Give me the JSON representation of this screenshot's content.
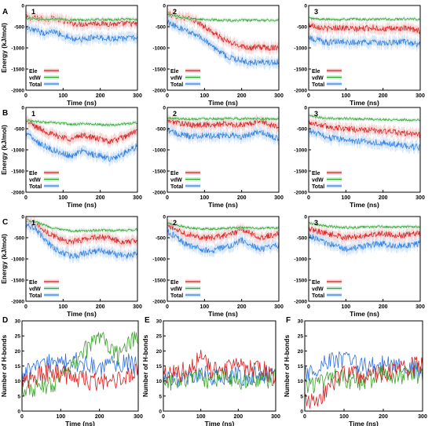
{
  "figure": {
    "row_labels": [
      "A",
      "B",
      "C",
      "D",
      "E",
      "F"
    ],
    "energy_ylabel": "Energy (kJ/mol)",
    "hbond_ylabel": "Number of H-bonds",
    "xlabel": "Time (ns)",
    "legend": [
      "Ele",
      "vdW",
      "Total"
    ]
  },
  "colors": {
    "ele": "#d42020",
    "ele_shade": "#f7c4c4",
    "vdw": "#3aa02a",
    "vdw_shade": "#c4ecd6",
    "total": "#2f7fe0",
    "total_shade": "#c6dcf7",
    "hb1": "#2f6fe0",
    "hb2": "#3aa02a",
    "hb3": "#d42020"
  },
  "chart_data": [
    {
      "type": "line",
      "panel": "A",
      "index_label": "1",
      "xlabel": "Time (ns)",
      "ylabel": "Energy (kJ/mol)",
      "xlim": [
        0,
        300
      ],
      "ylim": [
        -2000,
        0
      ],
      "xticks": [
        0,
        100,
        200,
        300
      ],
      "yticks": [
        0,
        -500,
        -1000,
        -1500,
        -2000
      ],
      "x": [
        0,
        25,
        50,
        75,
        100,
        125,
        150,
        175,
        200,
        225,
        250,
        275,
        300
      ],
      "series": [
        {
          "name": "Ele",
          "values": [
            -280,
            -300,
            -320,
            -300,
            -360,
            -420,
            -440,
            -410,
            -420,
            -430,
            -440,
            -420,
            -440
          ]
        },
        {
          "name": "vdW",
          "values": [
            -300,
            -310,
            -330,
            -320,
            -330,
            -340,
            -340,
            -340,
            -330,
            -340,
            -330,
            -320,
            -330
          ]
        },
        {
          "name": "Total",
          "values": [
            -560,
            -600,
            -650,
            -620,
            -700,
            -780,
            -800,
            -760,
            -770,
            -780,
            -790,
            -760,
            -780
          ]
        }
      ]
    },
    {
      "type": "line",
      "panel": "A",
      "index_label": "2",
      "xlabel": "Time (ns)",
      "ylabel": "Energy (kJ/mol)",
      "xlim": [
        0,
        300
      ],
      "ylim": [
        -2000,
        0
      ],
      "xticks": [
        0,
        100,
        200,
        300
      ],
      "yticks": [
        0,
        -500,
        -1000,
        -1500,
        -2000
      ],
      "x": [
        0,
        25,
        50,
        75,
        100,
        125,
        150,
        175,
        200,
        225,
        250,
        275,
        300
      ],
      "series": [
        {
          "name": "Ele",
          "values": [
            -200,
            -250,
            -300,
            -350,
            -500,
            -650,
            -800,
            -900,
            -950,
            -1000,
            -980,
            -1000,
            -980
          ]
        },
        {
          "name": "vdW",
          "values": [
            -200,
            -250,
            -300,
            -320,
            -330,
            -340,
            -350,
            -350,
            -350,
            -350,
            -350,
            -350,
            -350
          ]
        },
        {
          "name": "Total",
          "values": [
            -400,
            -500,
            -600,
            -670,
            -830,
            -990,
            -1150,
            -1250,
            -1300,
            -1350,
            -1330,
            -1350,
            -1330
          ]
        }
      ]
    },
    {
      "type": "line",
      "panel": "A",
      "index_label": "3",
      "xlabel": "Time (ns)",
      "ylabel": "Energy (kJ/mol)",
      "xlim": [
        0,
        300
      ],
      "ylim": [
        -2000,
        0
      ],
      "xticks": [
        0,
        100,
        200,
        300
      ],
      "yticks": [
        0,
        -500,
        -1000,
        -1500,
        -2000
      ],
      "x": [
        0,
        25,
        50,
        75,
        100,
        125,
        150,
        175,
        200,
        225,
        250,
        275,
        300
      ],
      "series": [
        {
          "name": "Ele",
          "values": [
            -450,
            -500,
            -550,
            -520,
            -530,
            -560,
            -540,
            -520,
            -560,
            -550,
            -540,
            -560,
            -600
          ]
        },
        {
          "name": "vdW",
          "values": [
            -300,
            -320,
            -330,
            -330,
            -330,
            -320,
            -330,
            -330,
            -320,
            -330,
            -320,
            -320,
            -330
          ]
        },
        {
          "name": "Total",
          "values": [
            -750,
            -820,
            -880,
            -850,
            -860,
            -880,
            -870,
            -850,
            -880,
            -880,
            -860,
            -880,
            -930
          ]
        }
      ]
    },
    {
      "type": "line",
      "panel": "B",
      "index_label": "1",
      "xlabel": "Time (ns)",
      "ylabel": "Energy (kJ/mol)",
      "xlim": [
        0,
        300
      ],
      "ylim": [
        -2000,
        0
      ],
      "xticks": [
        0,
        100,
        200,
        300
      ],
      "yticks": [
        0,
        -500,
        -1000,
        -1500,
        -2000
      ],
      "x": [
        0,
        25,
        50,
        75,
        100,
        125,
        150,
        175,
        200,
        225,
        250,
        275,
        300
      ],
      "series": [
        {
          "name": "Ele",
          "values": [
            -300,
            -450,
            -550,
            -650,
            -700,
            -750,
            -650,
            -700,
            -750,
            -800,
            -750,
            -650,
            -550
          ]
        },
        {
          "name": "vdW",
          "values": [
            -300,
            -330,
            -350,
            -360,
            -380,
            -400,
            -380,
            -390,
            -400,
            -410,
            -400,
            -380,
            -360
          ]
        },
        {
          "name": "Total",
          "values": [
            -600,
            -780,
            -900,
            -1010,
            -1080,
            -1150,
            -1030,
            -1090,
            -1150,
            -1210,
            -1150,
            -1030,
            -910
          ]
        }
      ]
    },
    {
      "type": "line",
      "panel": "B",
      "index_label": "2",
      "xlabel": "Time (ns)",
      "ylabel": "Energy (kJ/mol)",
      "xlim": [
        0,
        300
      ],
      "ylim": [
        -2000,
        0
      ],
      "xticks": [
        0,
        100,
        200,
        300
      ],
      "yticks": [
        0,
        -500,
        -1000,
        -1500,
        -2000
      ],
      "x": [
        0,
        25,
        50,
        75,
        100,
        125,
        150,
        175,
        200,
        225,
        250,
        275,
        300
      ],
      "series": [
        {
          "name": "Ele",
          "values": [
            -300,
            -350,
            -400,
            -420,
            -400,
            -420,
            -380,
            -400,
            -420,
            -380,
            -300,
            -400,
            -450
          ]
        },
        {
          "name": "vdW",
          "values": [
            -250,
            -260,
            -270,
            -270,
            -260,
            -260,
            -270,
            -260,
            -270,
            -260,
            -260,
            -270,
            -280
          ]
        },
        {
          "name": "Total",
          "values": [
            -550,
            -610,
            -670,
            -690,
            -660,
            -680,
            -650,
            -660,
            -690,
            -640,
            -560,
            -670,
            -730
          ]
        }
      ]
    },
    {
      "type": "line",
      "panel": "B",
      "index_label": "3",
      "xlabel": "Time (ns)",
      "ylabel": "Energy (kJ/mol)",
      "xlim": [
        0,
        300
      ],
      "ylim": [
        -2000,
        0
      ],
      "xticks": [
        0,
        100,
        200,
        300
      ],
      "yticks": [
        0,
        -500,
        -1000,
        -1500,
        -2000
      ],
      "x": [
        0,
        25,
        50,
        75,
        100,
        125,
        150,
        175,
        200,
        225,
        250,
        275,
        300
      ],
      "series": [
        {
          "name": "Ele",
          "values": [
            -350,
            -400,
            -450,
            -480,
            -500,
            -520,
            -530,
            -540,
            -560,
            -580,
            -600,
            -620,
            -650
          ]
        },
        {
          "name": "vdW",
          "values": [
            -200,
            -230,
            -250,
            -260,
            -260,
            -270,
            -270,
            -280,
            -280,
            -290,
            -290,
            -300,
            -300
          ]
        },
        {
          "name": "Total",
          "values": [
            -550,
            -630,
            -700,
            -740,
            -760,
            -790,
            -800,
            -820,
            -840,
            -870,
            -890,
            -920,
            -950
          ]
        }
      ]
    },
    {
      "type": "line",
      "panel": "C",
      "index_label": "1",
      "xlabel": "Time (ns)",
      "ylabel": "Energy (kJ/mol)",
      "xlim": [
        0,
        300
      ],
      "ylim": [
        -2000,
        0
      ],
      "xticks": [
        0,
        100,
        200,
        300
      ],
      "yticks": [
        0,
        -500,
        -1000,
        -1500,
        -2000
      ],
      "x": [
        0,
        25,
        50,
        75,
        100,
        125,
        150,
        175,
        200,
        225,
        250,
        275,
        300
      ],
      "series": [
        {
          "name": "Ele",
          "values": [
            -100,
            -150,
            -350,
            -450,
            -550,
            -600,
            -550,
            -500,
            -480,
            -520,
            -580,
            -600,
            -580
          ]
        },
        {
          "name": "vdW",
          "values": [
            -100,
            -120,
            -200,
            -280,
            -320,
            -340,
            -340,
            -330,
            -320,
            -330,
            -330,
            -320,
            -310
          ]
        },
        {
          "name": "Total",
          "values": [
            -200,
            -270,
            -550,
            -730,
            -870,
            -940,
            -890,
            -830,
            -800,
            -850,
            -910,
            -920,
            -890
          ]
        }
      ]
    },
    {
      "type": "line",
      "panel": "C",
      "index_label": "2",
      "xlabel": "Time (ns)",
      "ylabel": "Energy (kJ/mol)",
      "xlim": [
        0,
        300
      ],
      "ylim": [
        -2000,
        0
      ],
      "xticks": [
        0,
        100,
        200,
        300
      ],
      "yticks": [
        0,
        -500,
        -1000,
        -1500,
        -2000
      ],
      "x": [
        0,
        25,
        50,
        75,
        100,
        125,
        150,
        175,
        200,
        225,
        250,
        275,
        300
      ],
      "series": [
        {
          "name": "Ele",
          "values": [
            -200,
            -300,
            -400,
            -450,
            -500,
            -500,
            -450,
            -400,
            -300,
            -400,
            -500,
            -450,
            -400
          ]
        },
        {
          "name": "vdW",
          "values": [
            -150,
            -200,
            -250,
            -280,
            -290,
            -290,
            -280,
            -270,
            -260,
            -270,
            -280,
            -270,
            -270
          ]
        },
        {
          "name": "Total",
          "values": [
            -350,
            -500,
            -650,
            -730,
            -790,
            -790,
            -730,
            -670,
            -560,
            -670,
            -780,
            -720,
            -670
          ]
        }
      ]
    },
    {
      "type": "line",
      "panel": "C",
      "index_label": "3",
      "xlabel": "Time (ns)",
      "ylabel": "Energy (kJ/mol)",
      "xlim": [
        0,
        300
      ],
      "ylim": [
        -2000,
        0
      ],
      "xticks": [
        0,
        100,
        200,
        300
      ],
      "yticks": [
        0,
        -500,
        -1000,
        -1500,
        -2000
      ],
      "x": [
        0,
        25,
        50,
        75,
        100,
        125,
        150,
        175,
        200,
        225,
        250,
        275,
        300
      ],
      "series": [
        {
          "name": "Ele",
          "values": [
            -300,
            -350,
            -400,
            -450,
            -500,
            -480,
            -450,
            -420,
            -400,
            -430,
            -450,
            -420,
            -400
          ]
        },
        {
          "name": "vdW",
          "values": [
            -150,
            -200,
            -230,
            -250,
            -260,
            -260,
            -250,
            -240,
            -240,
            -250,
            -250,
            -240,
            -240
          ]
        },
        {
          "name": "Total",
          "values": [
            -450,
            -550,
            -630,
            -700,
            -760,
            -740,
            -700,
            -660,
            -640,
            -680,
            -700,
            -660,
            -640
          ]
        }
      ]
    },
    {
      "type": "line",
      "panel": "D",
      "index_label": "",
      "xlabel": "Time (ns)",
      "ylabel": "Number of H-bonds",
      "xlim": [
        0,
        300
      ],
      "ylim": [
        0,
        30
      ],
      "xticks": [
        0,
        100,
        200,
        300
      ],
      "yticks": [
        0,
        5,
        10,
        15,
        20,
        25,
        30
      ],
      "x": [
        0,
        25,
        50,
        75,
        100,
        125,
        150,
        175,
        200,
        225,
        250,
        275,
        300
      ],
      "series": [
        {
          "values": [
            12,
            14,
            15,
            16,
            15,
            17,
            16,
            15,
            14,
            15,
            16,
            16,
            15
          ]
        },
        {
          "values": [
            8,
            7,
            8,
            9,
            10,
            14,
            18,
            22,
            25,
            22,
            18,
            22,
            25
          ]
        },
        {
          "values": [
            10,
            11,
            12,
            13,
            12,
            12,
            11,
            10,
            9,
            10,
            11,
            12,
            13
          ]
        }
      ]
    },
    {
      "type": "line",
      "panel": "E",
      "index_label": "",
      "xlabel": "Time (ns)",
      "ylabel": "Number of H-bonds",
      "xlim": [
        0,
        300
      ],
      "ylim": [
        0,
        30
      ],
      "xticks": [
        0,
        100,
        200,
        300
      ],
      "yticks": [
        0,
        5,
        10,
        15,
        20,
        25,
        30
      ],
      "x": [
        0,
        25,
        50,
        75,
        100,
        125,
        150,
        175,
        200,
        225,
        250,
        275,
        300
      ],
      "series": [
        {
          "values": [
            10,
            10,
            11,
            12,
            12,
            12,
            11,
            12,
            12,
            11,
            12,
            12,
            12
          ]
        },
        {
          "values": [
            9,
            10,
            10,
            11,
            11,
            10,
            11,
            11,
            10,
            11,
            11,
            10,
            11
          ]
        },
        {
          "values": [
            12,
            12,
            13,
            14,
            18,
            14,
            13,
            14,
            15,
            14,
            15,
            13,
            12
          ]
        }
      ]
    },
    {
      "type": "line",
      "panel": "F",
      "index_label": "",
      "xlabel": "Time (ns)",
      "ylabel": "Number of H-bonds",
      "xlim": [
        0,
        300
      ],
      "ylim": [
        0,
        30
      ],
      "xticks": [
        0,
        100,
        200,
        300
      ],
      "yticks": [
        0,
        5,
        10,
        15,
        20,
        25,
        30
      ],
      "x": [
        0,
        25,
        50,
        75,
        100,
        125,
        150,
        175,
        200,
        225,
        250,
        275,
        300
      ],
      "series": [
        {
          "values": [
            12,
            14,
            16,
            17,
            17,
            16,
            15,
            15,
            16,
            15,
            14,
            14,
            13
          ]
        },
        {
          "values": [
            8,
            9,
            10,
            11,
            11,
            10,
            10,
            11,
            12,
            12,
            12,
            12,
            12
          ]
        },
        {
          "values": [
            3,
            4,
            6,
            10,
            12,
            12,
            11,
            12,
            13,
            13,
            14,
            15,
            15
          ]
        }
      ]
    }
  ]
}
